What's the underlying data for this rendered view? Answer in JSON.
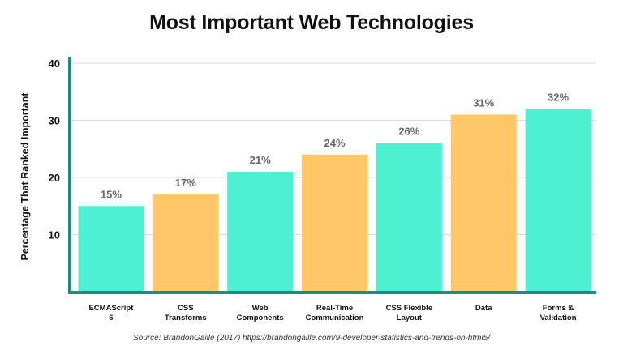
{
  "chart_data": {
    "type": "bar",
    "title": "Most Important Web Technologies",
    "ylabel": "Percentage That Ranked Important",
    "xlabel": "",
    "ylim": [
      0,
      40
    ],
    "yticks": [
      10,
      20,
      30,
      40
    ],
    "grid": true,
    "categories": [
      [
        "ECMAScript",
        "6"
      ],
      [
        "CSS",
        "Transforms"
      ],
      [
        "Web",
        "Components"
      ],
      [
        "Real-Time",
        "Communication"
      ],
      [
        "CSS Flexible",
        "Layout"
      ],
      [
        "Data"
      ],
      [
        "Forms &",
        "Validation"
      ]
    ],
    "values": [
      15,
      17,
      21,
      24,
      26,
      31,
      32
    ],
    "value_labels": [
      "15%",
      "17%",
      "21%",
      "24%",
      "26%",
      "31%",
      "32%"
    ],
    "bar_colors": [
      "#4ef0d2",
      "#ffc766",
      "#4ef0d2",
      "#ffc766",
      "#4ef0d2",
      "#ffc766",
      "#4ef0d2"
    ],
    "axis_color": "#13917e",
    "source": "Source: BrandonGaille (2017)  https://brandongaille.com/9-developer-statistics-and-trends-on-html5/"
  }
}
